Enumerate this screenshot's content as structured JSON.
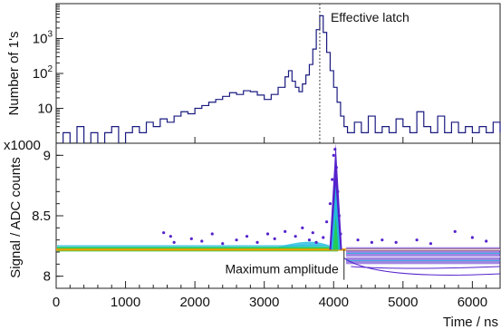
{
  "chart_data": [
    {
      "type": "line",
      "panel": "top",
      "ylabel": "Number of 1's",
      "yscale": "log",
      "ylim": [
        1,
        10000
      ],
      "xlim": [
        0,
        6400
      ],
      "y_ticks": [
        {
          "value": 10,
          "base": "10",
          "exp": ""
        },
        {
          "value": 100,
          "base": "10",
          "exp": "2"
        },
        {
          "value": 1000,
          "base": "10",
          "exp": "3"
        }
      ],
      "annotation": {
        "text": "Effective latch",
        "x": 3800
      },
      "line_color": "#1a1a80",
      "points": [
        [
          0,
          1
        ],
        [
          100,
          2
        ],
        [
          200,
          1
        ],
        [
          300,
          3
        ],
        [
          400,
          1
        ],
        [
          500,
          2
        ],
        [
          600,
          1
        ],
        [
          700,
          2
        ],
        [
          800,
          3
        ],
        [
          900,
          1
        ],
        [
          1000,
          2
        ],
        [
          1100,
          3
        ],
        [
          1200,
          2
        ],
        [
          1300,
          4
        ],
        [
          1400,
          3
        ],
        [
          1500,
          5
        ],
        [
          1600,
          4
        ],
        [
          1700,
          6
        ],
        [
          1800,
          8
        ],
        [
          1900,
          7
        ],
        [
          2000,
          10
        ],
        [
          2100,
          12
        ],
        [
          2200,
          15
        ],
        [
          2300,
          18
        ],
        [
          2400,
          22
        ],
        [
          2500,
          28
        ],
        [
          2600,
          25
        ],
        [
          2700,
          32
        ],
        [
          2800,
          30
        ],
        [
          2900,
          24
        ],
        [
          3000,
          18
        ],
        [
          3100,
          25
        ],
        [
          3200,
          40
        ],
        [
          3300,
          80
        ],
        [
          3350,
          120
        ],
        [
          3400,
          60
        ],
        [
          3450,
          40
        ],
        [
          3500,
          30
        ],
        [
          3550,
          50
        ],
        [
          3600,
          90
        ],
        [
          3650,
          180
        ],
        [
          3700,
          500
        ],
        [
          3750,
          1800
        ],
        [
          3800,
          4500
        ],
        [
          3850,
          1500
        ],
        [
          3900,
          400
        ],
        [
          3950,
          120
        ],
        [
          4000,
          40
        ],
        [
          4050,
          15
        ],
        [
          4100,
          6
        ],
        [
          4150,
          3
        ],
        [
          4200,
          2
        ],
        [
          4300,
          4
        ],
        [
          4400,
          2
        ],
        [
          4500,
          6
        ],
        [
          4600,
          2
        ],
        [
          4700,
          3
        ],
        [
          4800,
          2
        ],
        [
          4900,
          5
        ],
        [
          5000,
          3
        ],
        [
          5100,
          2
        ],
        [
          5200,
          8
        ],
        [
          5300,
          3
        ],
        [
          5400,
          2
        ],
        [
          5500,
          6
        ],
        [
          5600,
          2
        ],
        [
          5700,
          4
        ],
        [
          5800,
          2
        ],
        [
          5900,
          3
        ],
        [
          6000,
          2
        ],
        [
          6100,
          3
        ],
        [
          6200,
          2
        ],
        [
          6300,
          4
        ],
        [
          6400,
          2
        ]
      ]
    },
    {
      "type": "scatter",
      "panel": "bottom",
      "xlabel": "Time / ns",
      "ylabel": "Signal / ADC counts",
      "y_multiplier_label": "x1000",
      "xlim": [
        0,
        6400
      ],
      "ylim": [
        7.9,
        9.1
      ],
      "x_ticks": [
        "0",
        "1000",
        "2000",
        "3000",
        "4000",
        "5000",
        "6000"
      ],
      "x_tick_values": [
        0,
        1000,
        2000,
        3000,
        4000,
        5000,
        6000
      ],
      "y_ticks": [
        "8",
        "8.5",
        "9"
      ],
      "y_tick_values": [
        8,
        8.5,
        9
      ],
      "annotation": {
        "text": "Maximum amplitude",
        "x": 4150,
        "y": 8.22
      },
      "baseline": {
        "y": 8.22,
        "color": "#e8a000"
      },
      "colors": {
        "dense": "#22cc55",
        "mid": "#22bbdd",
        "sparse": "#5522cc"
      },
      "spike": {
        "x": 4030,
        "peak": 9.1
      },
      "points": [
        [
          1550,
          8.36
        ],
        [
          1650,
          8.33
        ],
        [
          1700,
          8.28
        ],
        [
          1950,
          8.31
        ],
        [
          2100,
          8.29
        ],
        [
          2250,
          8.35
        ],
        [
          2400,
          8.27
        ],
        [
          2600,
          8.3
        ],
        [
          2750,
          8.33
        ],
        [
          2900,
          8.28
        ],
        [
          3050,
          8.35
        ],
        [
          3150,
          8.31
        ],
        [
          3300,
          8.37
        ],
        [
          3450,
          8.33
        ],
        [
          3550,
          8.4
        ],
        [
          3650,
          8.3
        ],
        [
          3700,
          8.36
        ],
        [
          3750,
          8.28
        ],
        [
          3850,
          8.32
        ],
        [
          3900,
          8.45
        ],
        [
          3950,
          8.6
        ],
        [
          3980,
          8.8
        ],
        [
          4000,
          9.0
        ],
        [
          4020,
          9.05
        ],
        [
          4040,
          8.9
        ],
        [
          4060,
          8.7
        ],
        [
          4080,
          8.5
        ],
        [
          4100,
          8.35
        ],
        [
          4350,
          8.3
        ],
        [
          4550,
          8.28
        ],
        [
          4700,
          8.3
        ],
        [
          4900,
          8.28
        ],
        [
          5200,
          8.3
        ],
        [
          5400,
          8.27
        ],
        [
          5750,
          8.37
        ],
        [
          6000,
          8.32
        ],
        [
          6200,
          8.29
        ]
      ]
    }
  ]
}
